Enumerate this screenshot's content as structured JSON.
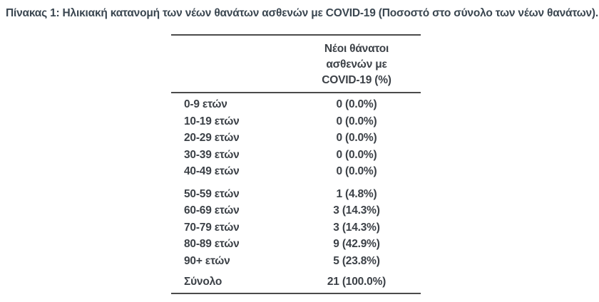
{
  "page": {
    "caption": "Πίνακας 1: Ηλικιακή κατανομή των νέων θανάτων ασθενών με COVID-19 (Ποσοστό στο σύνολο των νέων θανάτων)."
  },
  "table": {
    "column_header_lines": [
      "Νέοι θάνατοι",
      "ασθενών με",
      "COVID-19 (%)"
    ],
    "groups": [
      {
        "rows": [
          {
            "label": "0-9 ετών",
            "value": "0 (0.0%)"
          },
          {
            "label": "10-19 ετών",
            "value": "0 (0.0%)"
          },
          {
            "label": "20-29 ετών",
            "value": "0 (0.0%)"
          },
          {
            "label": "30-39 ετών",
            "value": "0 (0.0%)"
          },
          {
            "label": "40-49 ετών",
            "value": "0 (0.0%)"
          }
        ]
      },
      {
        "rows": [
          {
            "label": "50-59 ετών",
            "value": "1 (4.8%)"
          },
          {
            "label": "60-69 ετών",
            "value": "3 (14.3%)"
          },
          {
            "label": "70-79 ετών",
            "value": "3 (14.3%)"
          },
          {
            "label": "80-89 ετών",
            "value": "9 (42.9%)"
          },
          {
            "label": "90+ ετών",
            "value": "5 (23.8%)"
          }
        ]
      },
      {
        "rows": [
          {
            "label": "Σύνολο",
            "value": "21 (100.0%)"
          }
        ]
      }
    ]
  },
  "chart_data": {
    "type": "table",
    "title": "Πίνακας 1: Ηλικιακή κατανομή των νέων θανάτων ασθενών με COVID-19 (Ποσοστό στο σύνολο των νέων θανάτων).",
    "value_column_header": "Νέοι θάνατοι ασθενών με COVID-19 (%)",
    "categories": [
      "0-9 ετών",
      "10-19 ετών",
      "20-29 ετών",
      "30-39 ετών",
      "40-49 ετών",
      "50-59 ετών",
      "60-69 ετών",
      "70-79 ετών",
      "80-89 ετών",
      "90+ ετών",
      "Σύνολο"
    ],
    "deaths": [
      0,
      0,
      0,
      0,
      0,
      1,
      3,
      3,
      9,
      5,
      21
    ],
    "percentages": [
      0.0,
      0.0,
      0.0,
      0.0,
      0.0,
      4.8,
      14.3,
      14.3,
      42.9,
      23.8,
      100.0
    ]
  },
  "colors": {
    "title": "#3a4650",
    "text": "#3c4147",
    "rule": "#4b4b4b",
    "background": "#ffffff"
  }
}
